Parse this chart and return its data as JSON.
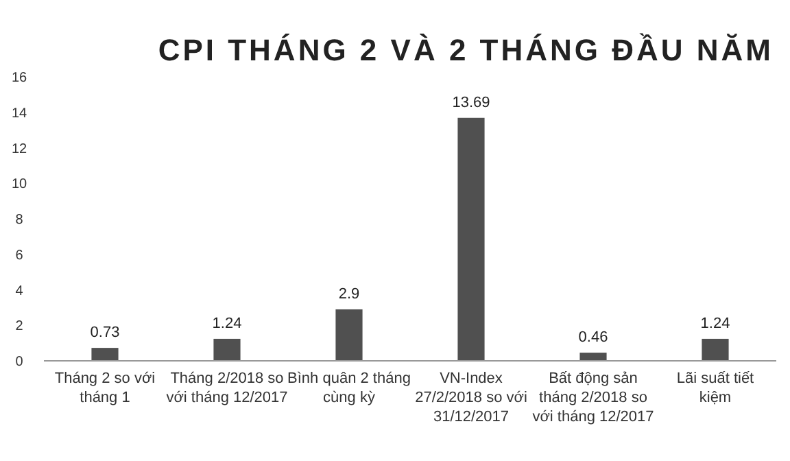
{
  "chart_data": {
    "type": "bar",
    "title": "CPI THÁNG 2 VÀ 2 THÁNG ĐẦU NĂM",
    "categories": [
      "Tháng 2 so với tháng 1",
      "Tháng 2/2018 so với tháng 12/2017",
      "Bình quân 2 tháng cùng kỳ",
      "VN-Index 27/2/2018 so với 31/12/2017",
      "Bất động sản tháng 2/2018 so với tháng 12/2017",
      "Lãi suất tiết kiệm"
    ],
    "values": [
      0.73,
      1.24,
      2.9,
      13.69,
      0.46,
      1.24
    ],
    "color": "#505050",
    "ylim": [
      0,
      16
    ],
    "yticks": [
      0,
      2,
      4,
      6,
      8,
      10,
      12,
      14,
      16
    ],
    "grid": false,
    "data_labels": true
  }
}
